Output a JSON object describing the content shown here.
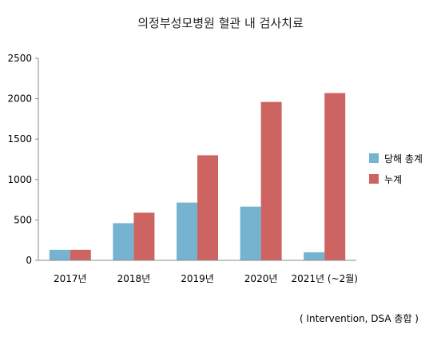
{
  "colors": {
    "current_year": "#76b3d0",
    "cumulative": "#cd6462",
    "axis": "#888888"
  },
  "chart_data": {
    "type": "bar",
    "title": "의정부성모병원 혈관 내 검사치료",
    "categories": [
      "2017년",
      "2018년",
      "2019년",
      "2020년",
      "2021년 (~2월)"
    ],
    "series": [
      {
        "name": "당해 총계",
        "values": [
          130,
          460,
          715,
          665,
          100
        ]
      },
      {
        "name": "누계",
        "values": [
          130,
          590,
          1300,
          1960,
          2070
        ]
      }
    ],
    "ylim": [
      0,
      2500
    ],
    "yticks": [
      0,
      500,
      1000,
      1500,
      2000,
      2500
    ],
    "legend_position": "right",
    "grid": false,
    "footnote": "( Intervention, DSA 총합 )"
  }
}
